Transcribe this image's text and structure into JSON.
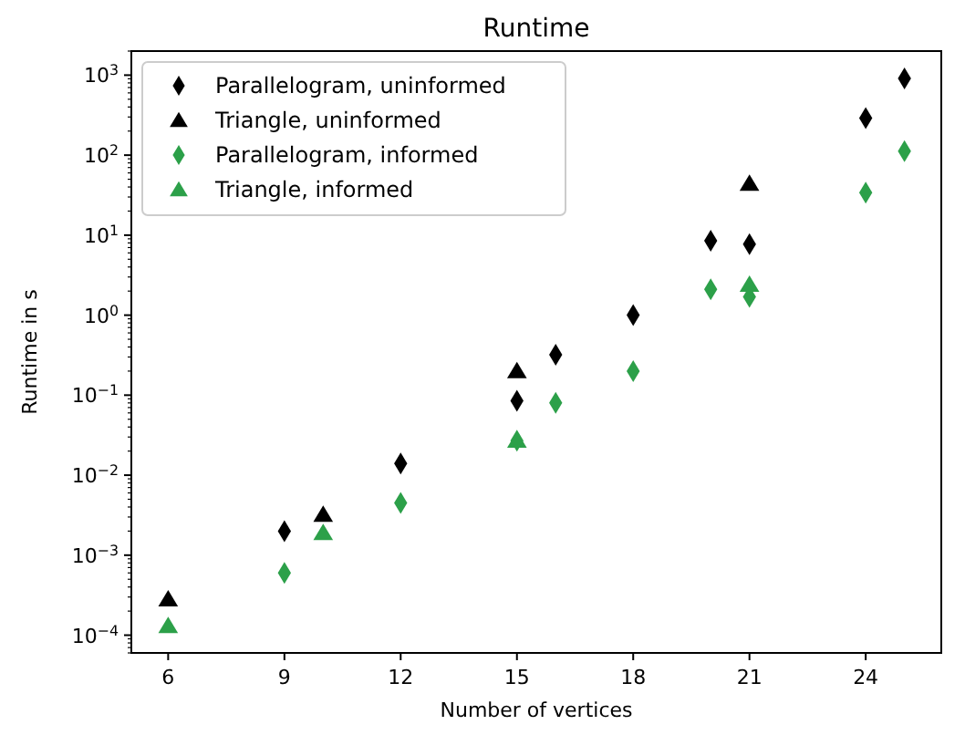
{
  "chart_data": {
    "type": "scatter",
    "title": "Runtime",
    "xlabel": "Number of vertices",
    "ylabel": "Runtime in s",
    "log": "y",
    "xlim": [
      5.05,
      25.95
    ],
    "xticks": [
      6,
      9,
      12,
      15,
      18,
      21,
      24
    ],
    "ylim": [
      6e-05,
      2000
    ],
    "yticks": [
      {
        "value": 0.0001,
        "label": "10$^{−4}$"
      },
      {
        "value": 0.001,
        "label": "10$^{−3}$"
      },
      {
        "value": 0.01,
        "label": "10$^{−2}$"
      },
      {
        "value": 0.1,
        "label": "10$^{−1}$"
      },
      {
        "value": 1,
        "label": "10$^{0}$"
      },
      {
        "value": 10,
        "label": "10$^{1}$"
      },
      {
        "value": 100,
        "label": "10$^{2}$"
      },
      {
        "value": 1000,
        "label": "10$^{3}$"
      }
    ],
    "grid": false,
    "legend": "top left",
    "series": [
      {
        "name": "Parallelogram, uninformed",
        "color": "#000000",
        "marker": "diamond",
        "x": [
          9,
          12,
          15,
          16,
          18,
          20,
          21,
          24,
          25
        ],
        "values": [
          0.002,
          0.014,
          0.085,
          0.32,
          1.0,
          8.5,
          7.7,
          290,
          910
        ]
      },
      {
        "name": "Triangle, uninformed",
        "color": "#000000",
        "marker": "triangle",
        "x": [
          6,
          10,
          15,
          21
        ],
        "values": [
          0.00028,
          0.0032,
          0.2,
          44
        ]
      },
      {
        "name": "Parallelogram, informed",
        "color": "#2ca049",
        "marker": "diamond",
        "x": [
          9,
          12,
          15,
          16,
          18,
          20,
          21,
          24,
          25
        ],
        "values": [
          0.0006,
          0.0045,
          0.027,
          0.08,
          0.2,
          2.1,
          1.7,
          34,
          112
        ]
      },
      {
        "name": "Triangle, informed",
        "color": "#2ca049",
        "marker": "triangle",
        "x": [
          6,
          10,
          15,
          21
        ],
        "values": [
          0.00013,
          0.0019,
          0.027,
          2.4
        ]
      }
    ]
  }
}
